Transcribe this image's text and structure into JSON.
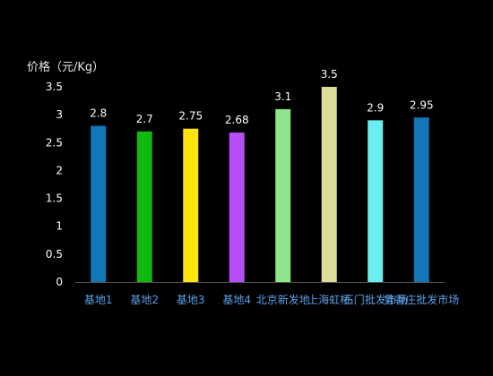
{
  "chart_data": {
    "type": "bar",
    "title": "",
    "xlabel": "",
    "ylabel": "价格（元/Kg）",
    "categories": [
      "基地1",
      "基地2",
      "基地3",
      "基地4",
      "北京新发地",
      "上海虹桥",
      "石门批发市场",
      "鲁香庄批发市场"
    ],
    "values": [
      2.8,
      2.7,
      2.75,
      2.68,
      3.1,
      3.5,
      2.9,
      2.95
    ],
    "value_labels": [
      "2.8",
      "2.7",
      "2.75",
      "2.68",
      "3.1",
      "3.5",
      "2.9",
      "2.95"
    ],
    "bar_colors": [
      "#1177b7",
      "#12b812",
      "#ffe40d",
      "#b84ef5",
      "#8ee58a",
      "#dede9a",
      "#69eef2",
      "#1177b7"
    ],
    "ylim": [
      0,
      3.5
    ],
    "yticks": [
      "0",
      "0.5",
      "1",
      "1.5",
      "2",
      "2.5",
      "3",
      "3.5"
    ],
    "grid": false,
    "legend": "none"
  },
  "colors": {
    "background": "#000000",
    "axis_line": "#555555",
    "x_tick_text": "#5aa0e6",
    "y_tick_text": "#ffffff"
  }
}
